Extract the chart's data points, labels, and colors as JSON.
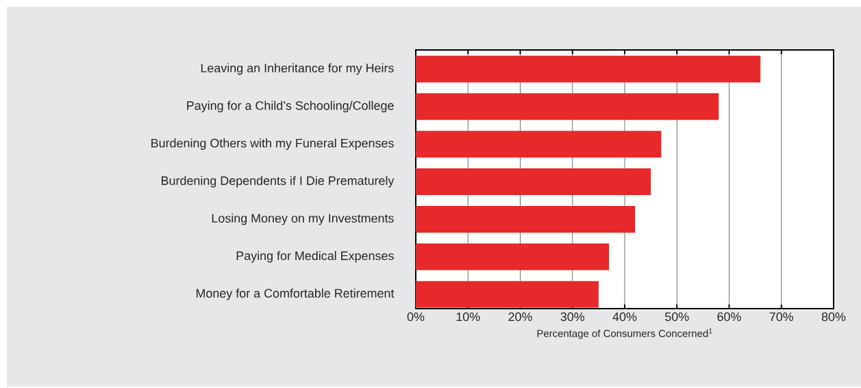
{
  "chart_data": {
    "type": "bar",
    "orientation": "horizontal",
    "xlabel": "Percentage of Consumers Concerned$^{1}$",
    "categories": [
      "Leaving an Inheritance for my Heirs",
      "Paying for a Child’s Schooling/College",
      "Burdening Others with my Funeral Expenses",
      "Burdening Dependents if I Die Prematurely",
      "Losing Money on my Investments",
      "Paying for Medical Expenses",
      "Money for a Comfortable Retirement"
    ],
    "values": [
      66,
      58,
      47,
      45,
      42,
      37,
      35
    ],
    "color": "#e8292c",
    "xlim": [
      0,
      80
    ],
    "xticks": [
      {
        "value": 0,
        "label": "0%"
      },
      {
        "value": 10,
        "label": "10%"
      },
      {
        "value": 20,
        "label": "20%"
      },
      {
        "value": 30,
        "label": "30%"
      },
      {
        "value": 40,
        "label": "40%"
      },
      {
        "value": 50,
        "label": "50%"
      },
      {
        "value": 60,
        "label": "60%"
      },
      {
        "value": 70,
        "label": "70%"
      },
      {
        "value": 80,
        "label": "80%"
      }
    ],
    "grid": "x"
  }
}
